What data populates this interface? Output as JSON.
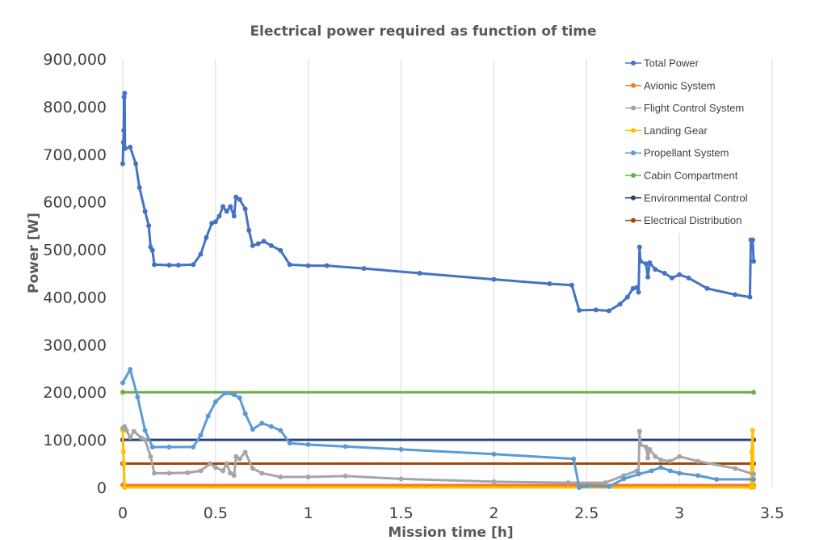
{
  "chart_data": {
    "type": "line",
    "title": "Electrical power required as function of time",
    "xlabel": "Mission time [h]",
    "ylabel": "Power [W]",
    "xlim": [
      0,
      3.5
    ],
    "ylim": [
      0,
      900000
    ],
    "x_ticks": [
      "0",
      "0.5",
      "1",
      "1.5",
      "2",
      "2.5",
      "3",
      "3.5"
    ],
    "y_ticks": [
      "0",
      "100,000",
      "200,000",
      "300,000",
      "400,000",
      "500,000",
      "600,000",
      "700,000",
      "800,000",
      "900,000"
    ],
    "grid": "vertical",
    "legend_position": "top-right",
    "series": [
      {
        "name": "Total Power",
        "color": "#4472c4",
        "points": [
          [
            0,
            680000
          ],
          [
            0.003,
            725000
          ],
          [
            0.005,
            750000
          ],
          [
            0.007,
            820000
          ],
          [
            0.01,
            828000
          ],
          [
            0.012,
            712000
          ],
          [
            0.04,
            715000
          ],
          [
            0.07,
            680000
          ],
          [
            0.09,
            630000
          ],
          [
            0.12,
            580000
          ],
          [
            0.14,
            550000
          ],
          [
            0.15,
            505000
          ],
          [
            0.16,
            498000
          ],
          [
            0.17,
            468000
          ],
          [
            0.25,
            467000
          ],
          [
            0.3,
            467000
          ],
          [
            0.38,
            468000
          ],
          [
            0.42,
            490000
          ],
          [
            0.45,
            525000
          ],
          [
            0.48,
            555000
          ],
          [
            0.5,
            558000
          ],
          [
            0.52,
            570000
          ],
          [
            0.54,
            590000
          ],
          [
            0.56,
            580000
          ],
          [
            0.58,
            590000
          ],
          [
            0.6,
            570000
          ],
          [
            0.61,
            610000
          ],
          [
            0.63,
            605000
          ],
          [
            0.66,
            585000
          ],
          [
            0.68,
            540000
          ],
          [
            0.7,
            508000
          ],
          [
            0.73,
            512000
          ],
          [
            0.76,
            517000
          ],
          [
            0.8,
            508000
          ],
          [
            0.85,
            498000
          ],
          [
            0.9,
            468000
          ],
          [
            1.0,
            466000
          ],
          [
            1.1,
            466000
          ],
          [
            1.3,
            460000
          ],
          [
            1.6,
            450000
          ],
          [
            2.0,
            437000
          ],
          [
            2.3,
            428000
          ],
          [
            2.42,
            425000
          ],
          [
            2.46,
            372000
          ],
          [
            2.55,
            373000
          ],
          [
            2.62,
            371000
          ],
          [
            2.68,
            385000
          ],
          [
            2.72,
            400000
          ],
          [
            2.75,
            418000
          ],
          [
            2.77,
            420000
          ],
          [
            2.78,
            410000
          ],
          [
            2.785,
            505000
          ],
          [
            2.79,
            475000
          ],
          [
            2.82,
            470000
          ],
          [
            2.83,
            442000
          ],
          [
            2.84,
            472000
          ],
          [
            2.87,
            458000
          ],
          [
            2.92,
            450000
          ],
          [
            2.96,
            440000
          ],
          [
            3.0,
            447000
          ],
          [
            3.05,
            440000
          ],
          [
            3.15,
            418000
          ],
          [
            3.3,
            405000
          ],
          [
            3.38,
            400000
          ],
          [
            3.385,
            520000
          ],
          [
            3.395,
            520000
          ],
          [
            3.4,
            475000
          ]
        ]
      },
      {
        "name": "Avionic System",
        "color": "#ed7d31",
        "points": [
          [
            0,
            5000
          ],
          [
            3.4,
            5000
          ]
        ]
      },
      {
        "name": "Flight Control System",
        "color": "#a5a5a5",
        "points": [
          [
            0,
            125000
          ],
          [
            0.01,
            128000
          ],
          [
            0.02,
            120000
          ],
          [
            0.04,
            105000
          ],
          [
            0.06,
            118000
          ],
          [
            0.1,
            104000
          ],
          [
            0.12,
            100000
          ],
          [
            0.15,
            65000
          ],
          [
            0.17,
            30000
          ],
          [
            0.25,
            30000
          ],
          [
            0.35,
            31000
          ],
          [
            0.42,
            35000
          ],
          [
            0.47,
            50000
          ],
          [
            0.5,
            42000
          ],
          [
            0.54,
            35000
          ],
          [
            0.56,
            50000
          ],
          [
            0.58,
            30000
          ],
          [
            0.6,
            25000
          ],
          [
            0.61,
            65000
          ],
          [
            0.63,
            60000
          ],
          [
            0.66,
            74000
          ],
          [
            0.7,
            40000
          ],
          [
            0.75,
            30000
          ],
          [
            0.85,
            22000
          ],
          [
            1.0,
            22000
          ],
          [
            1.2,
            24000
          ],
          [
            1.5,
            18000
          ],
          [
            2.0,
            12000
          ],
          [
            2.4,
            10000
          ],
          [
            2.6,
            10000
          ],
          [
            2.7,
            25000
          ],
          [
            2.77,
            35000
          ],
          [
            2.78,
            30000
          ],
          [
            2.785,
            118000
          ],
          [
            2.79,
            90000
          ],
          [
            2.82,
            85000
          ],
          [
            2.83,
            62000
          ],
          [
            2.84,
            80000
          ],
          [
            2.87,
            65000
          ],
          [
            2.9,
            58000
          ],
          [
            2.95,
            55000
          ],
          [
            3.0,
            65000
          ],
          [
            3.1,
            55000
          ],
          [
            3.3,
            40000
          ],
          [
            3.4,
            28000
          ]
        ]
      },
      {
        "name": "Landing Gear",
        "color": "#ffc000",
        "points": [
          [
            0,
            120000
          ],
          [
            0.003,
            75000
          ],
          [
            0.006,
            50000
          ],
          [
            0.01,
            0
          ],
          [
            3.385,
            0
          ],
          [
            3.39,
            75000
          ],
          [
            3.395,
            120000
          ],
          [
            3.4,
            0
          ]
        ]
      },
      {
        "name": "Propellant System",
        "color": "#5b9bd5",
        "points": [
          [
            0,
            220000
          ],
          [
            0.04,
            248000
          ],
          [
            0.08,
            190000
          ],
          [
            0.12,
            120000
          ],
          [
            0.16,
            85000
          ],
          [
            0.25,
            85000
          ],
          [
            0.38,
            85000
          ],
          [
            0.42,
            110000
          ],
          [
            0.46,
            150000
          ],
          [
            0.5,
            180000
          ],
          [
            0.55,
            198000
          ],
          [
            0.6,
            195000
          ],
          [
            0.63,
            188000
          ],
          [
            0.66,
            155000
          ],
          [
            0.7,
            122000
          ],
          [
            0.75,
            135000
          ],
          [
            0.8,
            128000
          ],
          [
            0.85,
            120000
          ],
          [
            0.9,
            93000
          ],
          [
            1.0,
            90000
          ],
          [
            1.2,
            86000
          ],
          [
            1.5,
            80000
          ],
          [
            2.0,
            70000
          ],
          [
            2.43,
            60000
          ],
          [
            2.46,
            0
          ],
          [
            2.5,
            3000
          ],
          [
            2.62,
            2000
          ],
          [
            2.7,
            18000
          ],
          [
            2.78,
            28000
          ],
          [
            2.85,
            35000
          ],
          [
            2.9,
            42000
          ],
          [
            2.95,
            35000
          ],
          [
            3.0,
            30000
          ],
          [
            3.1,
            25000
          ],
          [
            3.2,
            17000
          ],
          [
            3.4,
            17000
          ]
        ]
      },
      {
        "name": "Cabin Compartment",
        "color": "#70ad47",
        "points": [
          [
            0,
            200000
          ],
          [
            3.4,
            200000
          ]
        ]
      },
      {
        "name": "Environmental Control",
        "color": "#264478",
        "points": [
          [
            0,
            100000
          ],
          [
            3.4,
            100000
          ]
        ]
      },
      {
        "name": "Electrical Distribution",
        "color": "#9e480e",
        "points": [
          [
            0,
            50000
          ],
          [
            3.4,
            50000
          ]
        ]
      }
    ]
  }
}
